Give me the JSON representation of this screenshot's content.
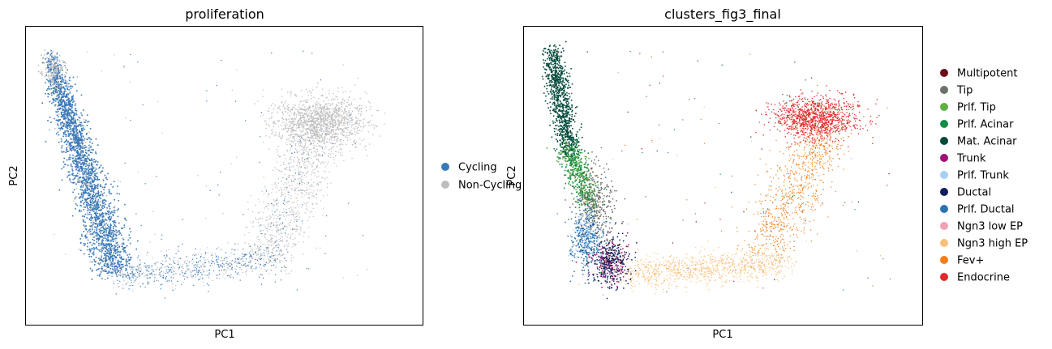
{
  "panels": [
    {
      "title": "proliferation",
      "xlabel": "PC1",
      "ylabel": "PC2",
      "legend": [
        {
          "label": "Cycling",
          "color": "#3878b8"
        },
        {
          "label": "Non-Cycling",
          "color": "#bdbdbd"
        }
      ]
    },
    {
      "title": "clusters_fig3_final",
      "xlabel": "PC1",
      "ylabel": "PC2",
      "legend": [
        {
          "label": "Multipotent",
          "color": "#6b0e18"
        },
        {
          "label": "Tip",
          "color": "#6b7068"
        },
        {
          "label": "Prlf. Tip",
          "color": "#60b043"
        },
        {
          "label": "Prlf. Acinar",
          "color": "#168c46"
        },
        {
          "label": "Mat. Acinar",
          "color": "#034a3c"
        },
        {
          "label": "Trunk",
          "color": "#a01278"
        },
        {
          "label": "Prlf. Trunk",
          "color": "#a9cff5"
        },
        {
          "label": "Ductal",
          "color": "#0e1f5c"
        },
        {
          "label": "Prlf. Ductal",
          "color": "#2a74b5"
        },
        {
          "label": "Ngn3 low EP",
          "color": "#f1a1b4"
        },
        {
          "label": "Ngn3 high EP",
          "color": "#f9c07a"
        },
        {
          "label": "Fev+",
          "color": "#f47e1a"
        },
        {
          "label": "Endocrine",
          "color": "#e12a28"
        }
      ]
    }
  ],
  "chart_data": [
    {
      "type": "scatter",
      "title": "proliferation",
      "xlabel": "PC1",
      "ylabel": "PC2",
      "axis_ticks": false,
      "grid": false,
      "legend_position": "right-outside",
      "series": [
        {
          "name": "Cycling",
          "color": "#3878b8",
          "region": "left vertical arm and lower-left bend, sparse along bottom"
        },
        {
          "name": "Non-Cycling",
          "color": "#bdbdbd",
          "region": "top of left arm, right arm rising to upper-right cluster"
        }
      ]
    },
    {
      "type": "scatter",
      "title": "clusters_fig3_final",
      "xlabel": "PC1",
      "ylabel": "PC2",
      "axis_ticks": false,
      "grid": false,
      "legend_position": "right-outside",
      "series": [
        {
          "name": "Multipotent",
          "color": "#6b0e18"
        },
        {
          "name": "Tip",
          "color": "#6b7068"
        },
        {
          "name": "Prlf. Tip",
          "color": "#60b043"
        },
        {
          "name": "Prlf. Acinar",
          "color": "#168c46"
        },
        {
          "name": "Mat. Acinar",
          "color": "#034a3c"
        },
        {
          "name": "Trunk",
          "color": "#a01278"
        },
        {
          "name": "Prlf. Trunk",
          "color": "#a9cff5"
        },
        {
          "name": "Ductal",
          "color": "#0e1f5c"
        },
        {
          "name": "Prlf. Ductal",
          "color": "#2a74b5"
        },
        {
          "name": "Ngn3 low EP",
          "color": "#f1a1b4"
        },
        {
          "name": "Ngn3 high EP",
          "color": "#f9c07a"
        },
        {
          "name": "Fev+",
          "color": "#f47e1a"
        },
        {
          "name": "Endocrine",
          "color": "#e12a28"
        }
      ]
    }
  ]
}
